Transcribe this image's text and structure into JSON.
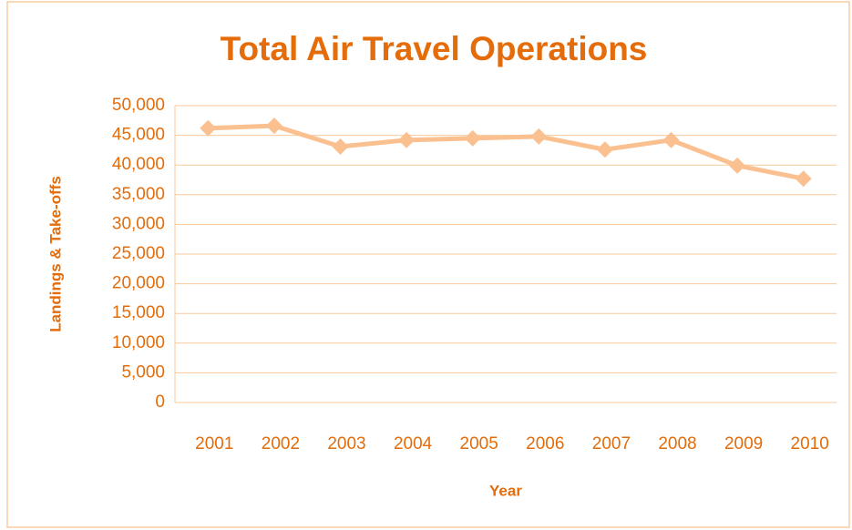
{
  "chart_data": {
    "type": "line",
    "title": "Total Air Travel Operations",
    "x_label": "Year",
    "y_label": "Landings & Take-offs",
    "categories": [
      "2001",
      "2002",
      "2003",
      "2004",
      "2005",
      "2006",
      "2007",
      "2008",
      "2009",
      "2010"
    ],
    "series": [
      {
        "name": "Total Air Travel Operations",
        "color": "#FAC090",
        "values": [
          46200,
          46600,
          43100,
          44200,
          44500,
          44800,
          42600,
          44200,
          39900,
          37700
        ]
      }
    ],
    "ylim": [
      0,
      50000
    ],
    "yticks": [
      0,
      {
        "value": 5000,
        "label": "5,000"
      },
      {
        "value": 10000,
        "label": "10,000"
      },
      {
        "value": 15000,
        "label": "15,000"
      },
      {
        "value": 20000,
        "label": "20,000"
      },
      {
        "value": 25000,
        "label": "25,000"
      },
      {
        "value": 30000,
        "label": "30,000"
      },
      {
        "value": 35000,
        "label": "35,000"
      },
      {
        "value": 40000,
        "label": "40,000"
      },
      {
        "value": 45000,
        "label": "45,000"
      },
      {
        "value": 50000,
        "label": "50,000"
      }
    ],
    "grid": true,
    "text_color": "#E46C0A"
  }
}
